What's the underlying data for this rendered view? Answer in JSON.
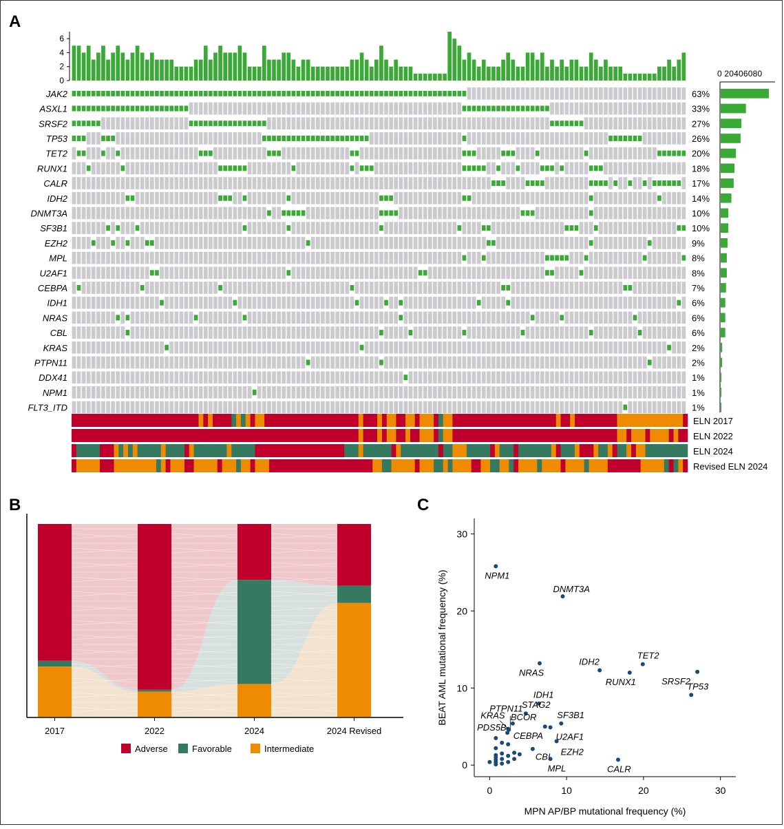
{
  "panels": {
    "a": "A",
    "b": "B",
    "c": "C"
  },
  "colors": {
    "mut": "#3aa935",
    "nomut": "#cbcbcf",
    "adverse": "#c0002a",
    "favorable": "#357a60",
    "intermediate": "#ef8b00",
    "point": "#1a4a7a"
  },
  "chart_data": [
    {
      "type": "oncoplot",
      "genes": [
        "JAK2",
        "ASXL1",
        "SRSF2",
        "TP53",
        "TET2",
        "RUNX1",
        "CALR",
        "IDH2",
        "DNMT3A",
        "SF3B1",
        "EZH2",
        "MPL",
        "U2AF1",
        "CEBPA",
        "IDH1",
        "NRAS",
        "CBL",
        "KRAS",
        "PTPN11",
        "DDX41",
        "NPM1",
        "FLT3_ITD"
      ],
      "gene_pct": [
        "63%",
        "33%",
        "27%",
        "26%",
        "20%",
        "18%",
        "17%",
        "14%",
        "10%",
        "10%",
        "9%",
        "8%",
        "8%",
        "7%",
        "6%",
        "6%",
        "6%",
        "2%",
        "2%",
        "1%",
        "1%",
        "1%"
      ],
      "gene_pct_values": [
        63,
        33,
        27,
        26,
        20,
        18,
        17,
        14,
        10,
        10,
        9,
        8,
        8,
        7,
        6,
        6,
        6,
        2,
        2,
        1,
        1,
        1
      ],
      "top_bar": {
        "ylim": [
          0,
          7
        ],
        "yticks": [
          0,
          2,
          4,
          6
        ]
      },
      "right_bar": {
        "xlim": [
          0,
          80
        ],
        "xticks_label": "0 20406080"
      },
      "n_samples": 126,
      "mutations_by_gene": [
        "0-80",
        "0-23,80-97",
        "0-5,24-39,98-104",
        "0-2,6-8,39-60,80,110-116",
        "1-2,6,9,26-28,40-42,57-58,80-82,88-90,95,105,120-125",
        "3,10,30-35,45,57,59-61,80-84,87,91,96-98,100,106-108",
        "86-88,93-96,106-109,111,114,117,119-124",
        "11-12,30-32,35,44,63-65,80-81,106,120",
        "40,43-47,63-66,92-94,106",
        "7,9,13,35,44,63,79,84-85,101-103,107,124-125",
        "4,8,11,15-16,48,85-86,106,118",
        "80,84,97-101,105,117,125",
        "16-17,44,71-72,97-98,104,126",
        "1,14,30,57,88-89,113-114",
        "18,33,58,64,67,83,89,124",
        "9,11,25,35,67,94,100,115",
        "11,63,69,80,92,106,116",
        "19,59,122",
        "48,63,118",
        "68",
        "37",
        "113"
      ],
      "mutation_count_per_sample": [
        5,
        5,
        4,
        5,
        3,
        4,
        5,
        3,
        4,
        5,
        4,
        3,
        4,
        5,
        4,
        3,
        4,
        3,
        3,
        3,
        3,
        2,
        2,
        2,
        2,
        3,
        3,
        5,
        3,
        4,
        5,
        4,
        4,
        4,
        5,
        4,
        2,
        2,
        2,
        5,
        3,
        3,
        3,
        4,
        4,
        3,
        2,
        3,
        3,
        2,
        2,
        2,
        2,
        2,
        2,
        2,
        2,
        3,
        3,
        4,
        3,
        2,
        3,
        5,
        3,
        2,
        3,
        2,
        2,
        2,
        1,
        1,
        1,
        1,
        1,
        1,
        1,
        7,
        6,
        5,
        3,
        4,
        3,
        2,
        3,
        2,
        2,
        2,
        3,
        4,
        3,
        2,
        2,
        4,
        4,
        3,
        4,
        2,
        3,
        2,
        3,
        2,
        3,
        3,
        2,
        2,
        4,
        3,
        2,
        3,
        2,
        2,
        2,
        1,
        1,
        1,
        1,
        1,
        1,
        1,
        2,
        2,
        3,
        2,
        3,
        4,
        3
      ],
      "classification_rows": [
        "ELN 2017",
        "ELN 2022",
        "ELN 2024",
        "Revised ELN 2024"
      ],
      "classification_segments": [
        [
          [
            "A",
            0,
            26
          ],
          [
            "I",
            27,
            27
          ],
          [
            "A",
            28,
            28
          ],
          [
            "I",
            29,
            29
          ],
          [
            "A",
            30,
            33
          ],
          [
            "F",
            34,
            34
          ],
          [
            "I",
            35,
            35
          ],
          [
            "F",
            36,
            36
          ],
          [
            "I",
            37,
            37
          ],
          [
            "A",
            38,
            38
          ],
          [
            "I",
            39,
            40
          ],
          [
            "A",
            41,
            60
          ],
          [
            "I",
            61,
            61
          ],
          [
            "A",
            62,
            64
          ],
          [
            "I",
            65,
            65
          ],
          [
            "A",
            66,
            66
          ],
          [
            "I",
            67,
            68
          ],
          [
            "A",
            69,
            70
          ],
          [
            "I",
            71,
            72
          ],
          [
            "A",
            73,
            73
          ],
          [
            "I",
            74,
            76
          ],
          [
            "A",
            77,
            77
          ],
          [
            "F",
            78,
            78
          ],
          [
            "I",
            79,
            80
          ],
          [
            "A",
            81,
            102
          ],
          [
            "I",
            103,
            103
          ],
          [
            "A",
            104,
            105
          ],
          [
            "I",
            106,
            106
          ],
          [
            "A",
            107,
            115
          ],
          [
            "I",
            116,
            129
          ],
          [
            "A",
            130,
            130
          ]
        ],
        [
          [
            "A",
            0,
            60
          ],
          [
            "I",
            61,
            61
          ],
          [
            "A",
            62,
            64
          ],
          [
            "I",
            65,
            65
          ],
          [
            "A",
            66,
            66
          ],
          [
            "I",
            67,
            68
          ],
          [
            "A",
            69,
            70
          ],
          [
            "I",
            71,
            71
          ],
          [
            "A",
            72,
            73
          ],
          [
            "I",
            74,
            76
          ],
          [
            "A",
            77,
            77
          ],
          [
            "F",
            78,
            78
          ],
          [
            "I",
            79,
            80
          ],
          [
            "A",
            81,
            115
          ],
          [
            "I",
            116,
            117
          ],
          [
            "A",
            118,
            118
          ],
          [
            "I",
            119,
            121
          ],
          [
            "A",
            122,
            122
          ],
          [
            "I",
            123,
            126
          ],
          [
            "A",
            127,
            127
          ],
          [
            "I",
            128,
            128
          ],
          [
            "A",
            129,
            130
          ]
        ],
        [
          [
            "A",
            0,
            0
          ],
          [
            "F",
            1,
            5
          ],
          [
            "A",
            6,
            8
          ],
          [
            "I",
            9,
            9
          ],
          [
            "F",
            10,
            10
          ],
          [
            "I",
            11,
            11
          ],
          [
            "F",
            12,
            12
          ],
          [
            "I",
            13,
            13
          ],
          [
            "F",
            14,
            18
          ],
          [
            "I",
            19,
            19
          ],
          [
            "F",
            20,
            23
          ],
          [
            "A",
            24,
            24
          ],
          [
            "I",
            25,
            25
          ],
          [
            "F",
            26,
            32
          ],
          [
            "I",
            33,
            33
          ],
          [
            "F",
            34,
            38
          ],
          [
            "A",
            39,
            57
          ],
          [
            "F",
            58,
            60
          ],
          [
            "I",
            61,
            61
          ],
          [
            "F",
            62,
            67
          ],
          [
            "A",
            68,
            68
          ],
          [
            "I",
            69,
            69
          ],
          [
            "F",
            70,
            77
          ],
          [
            "A",
            78,
            78
          ],
          [
            "F",
            79,
            80
          ],
          [
            "I",
            81,
            83
          ],
          [
            "F",
            84,
            88
          ],
          [
            "A",
            89,
            89
          ],
          [
            "I",
            90,
            90
          ],
          [
            "F",
            91,
            93
          ],
          [
            "A",
            94,
            94
          ],
          [
            "F",
            95,
            101
          ],
          [
            "I",
            102,
            102
          ],
          [
            "A",
            103,
            103
          ],
          [
            "F",
            104,
            106
          ],
          [
            "I",
            107,
            107
          ],
          [
            "A",
            108,
            110
          ],
          [
            "I",
            111,
            111
          ],
          [
            "F",
            112,
            113
          ],
          [
            "I",
            114,
            114
          ],
          [
            "A",
            115,
            115
          ],
          [
            "F",
            116,
            117
          ],
          [
            "I",
            118,
            118
          ],
          [
            "A",
            119,
            119
          ],
          [
            "I",
            120,
            121
          ],
          [
            "F",
            122,
            130
          ]
        ],
        [
          [
            "A",
            0,
            0
          ],
          [
            "I",
            1,
            5
          ],
          [
            "A",
            6,
            8
          ],
          [
            "I",
            9,
            17
          ],
          [
            "F",
            18,
            18
          ],
          [
            "I",
            19,
            19
          ],
          [
            "A",
            20,
            20
          ],
          [
            "I",
            21,
            23
          ],
          [
            "A",
            24,
            25
          ],
          [
            "I",
            26,
            30
          ],
          [
            "A",
            31,
            31
          ],
          [
            "I",
            32,
            34
          ],
          [
            "F",
            35,
            35
          ],
          [
            "I",
            36,
            37
          ],
          [
            "A",
            38,
            38
          ],
          [
            "I",
            39,
            41
          ],
          [
            "A",
            42,
            63
          ],
          [
            "I",
            64,
            65
          ],
          [
            "F",
            66,
            67
          ],
          [
            "I",
            68,
            72
          ],
          [
            "A",
            73,
            73
          ],
          [
            "I",
            74,
            76
          ],
          [
            "F",
            77,
            78
          ],
          [
            "I",
            79,
            79
          ],
          [
            "F",
            80,
            80
          ],
          [
            "I",
            81,
            84
          ],
          [
            "A",
            85,
            86
          ],
          [
            "I",
            87,
            88
          ],
          [
            "F",
            89,
            90
          ],
          [
            "I",
            91,
            92
          ],
          [
            "F",
            93,
            93
          ],
          [
            "A",
            94,
            94
          ],
          [
            "I",
            95,
            98
          ],
          [
            "F",
            99,
            99
          ],
          [
            "I",
            100,
            103
          ],
          [
            "A",
            104,
            104
          ],
          [
            "I",
            105,
            108
          ],
          [
            "F",
            109,
            109
          ],
          [
            "I",
            110,
            113
          ],
          [
            "A",
            114,
            120
          ],
          [
            "I",
            121,
            125
          ],
          [
            "F",
            126,
            126
          ],
          [
            "A",
            127,
            127
          ],
          [
            "F",
            128,
            128
          ],
          [
            "I",
            129,
            129
          ],
          [
            "A",
            130,
            130
          ]
        ]
      ]
    },
    {
      "type": "sankey",
      "categories": [
        "2017",
        "2022",
        "2024",
        "2024 Revised"
      ],
      "series": [
        {
          "name": "Adverse",
          "values": [
            0.71,
            0.86,
            0.29,
            0.32
          ]
        },
        {
          "name": "Favorable",
          "values": [
            0.03,
            0.01,
            0.54,
            0.09
          ]
        },
        {
          "name": "Intermediate",
          "values": [
            0.26,
            0.13,
            0.17,
            0.59
          ]
        }
      ],
      "legend": [
        "Adverse",
        "Favorable",
        "Intermediate"
      ]
    },
    {
      "type": "scatter",
      "xlabel": "MPN AP/BP mutational frequency (%)",
      "ylabel": "BEAT AML mutational frequency (%)",
      "xlim": [
        -2,
        32
      ],
      "ylim": [
        -1.5,
        32
      ],
      "xticks": [
        0,
        10,
        20,
        30
      ],
      "yticks": [
        0,
        10,
        20,
        30
      ],
      "labeled_points": [
        {
          "label": "NPM1",
          "x": 0.8,
          "y": 25.8
        },
        {
          "label": "DNMT3A",
          "x": 9.5,
          "y": 21.9
        },
        {
          "label": "NRAS",
          "x": 6.5,
          "y": 13.2
        },
        {
          "label": "IDH2",
          "x": 14.3,
          "y": 12.3
        },
        {
          "label": "TET2",
          "x": 19.9,
          "y": 13.1
        },
        {
          "label": "RUNX1",
          "x": 18.2,
          "y": 12.0
        },
        {
          "label": "SRSF2",
          "x": 27.0,
          "y": 12.1
        },
        {
          "label": "TP53",
          "x": 26.2,
          "y": 9.1
        },
        {
          "label": "IDH1",
          "x": 6.4,
          "y": 8.0
        },
        {
          "label": "PTPN11",
          "x": 2.5,
          "y": 4.6
        },
        {
          "label": "STAG2",
          "x": 4.7,
          "y": 6.7
        },
        {
          "label": "BCOR",
          "x": 3.0,
          "y": 5.4
        },
        {
          "label": "KRAS",
          "x": 2.4,
          "y": 4.7
        },
        {
          "label": "SF3B1",
          "x": 9.3,
          "y": 5.4
        },
        {
          "label": "CEBPA",
          "x": 7.2,
          "y": 5.0
        },
        {
          "label": "U2AF1",
          "x": 7.9,
          "y": 4.9
        },
        {
          "label": "PDS5B",
          "x": 2.3,
          "y": 4.2
        },
        {
          "label": "CBL",
          "x": 5.6,
          "y": 2.1
        },
        {
          "label": "EZH2",
          "x": 8.7,
          "y": 3.1
        },
        {
          "label": "MPL",
          "x": 7.9,
          "y": 0.8
        },
        {
          "label": "CALR",
          "x": 16.7,
          "y": 0.7
        }
      ],
      "other_points": [
        {
          "x": 0.8,
          "y": 0.1
        },
        {
          "x": 0.8,
          "y": 0.4
        },
        {
          "x": 0.8,
          "y": 0.7
        },
        {
          "x": 0.8,
          "y": 1.0
        },
        {
          "x": 0.8,
          "y": 1.3
        },
        {
          "x": 0.8,
          "y": 2.2
        },
        {
          "x": 0.8,
          "y": 3.5
        },
        {
          "x": 1.6,
          "y": 0.2
        },
        {
          "x": 1.6,
          "y": 0.8
        },
        {
          "x": 1.6,
          "y": 1.5
        },
        {
          "x": 1.6,
          "y": 2.9
        },
        {
          "x": 2.4,
          "y": 0.4
        },
        {
          "x": 2.4,
          "y": 1.2
        },
        {
          "x": 2.4,
          "y": 2.7
        },
        {
          "x": 3.2,
          "y": 0.8
        },
        {
          "x": 3.2,
          "y": 1.6
        },
        {
          "x": 3.9,
          "y": 1.4
        },
        {
          "x": 0.0,
          "y": 0.4
        }
      ]
    }
  ]
}
